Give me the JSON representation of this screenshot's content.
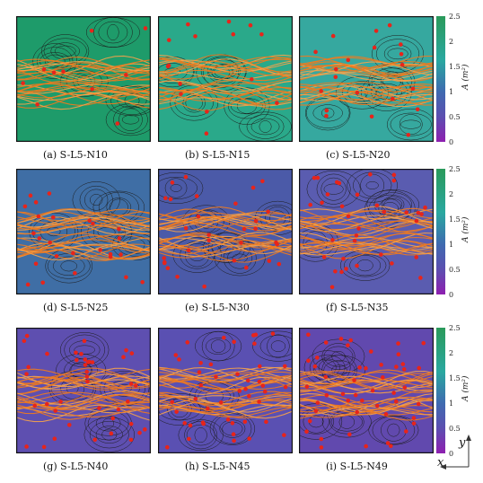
{
  "panels": [
    {
      "id": "a",
      "caption": "(a) S-L5-N10",
      "base": "#1e9b6a",
      "points": 10
    },
    {
      "id": "b",
      "caption": "(b) S-L5-N15",
      "base": "#2aa98a",
      "points": 15
    },
    {
      "id": "c",
      "caption": "(c) S-L5-N20",
      "base": "#36a89f",
      "points": 20
    },
    {
      "id": "d",
      "caption": "(d) S-L5-N25",
      "base": "#3f6ea5",
      "points": 25
    },
    {
      "id": "e",
      "caption": "(e) S-L5-N30",
      "base": "#4b5aa8",
      "points": 30
    },
    {
      "id": "f",
      "caption": "(f) S-L5-N35",
      "base": "#5a5cb0",
      "points": 35
    },
    {
      "id": "g",
      "caption": "(g) S-L5-N40",
      "base": "#5e4fb0",
      "points": 40
    },
    {
      "id": "h",
      "caption": "(h) S-L5-N45",
      "base": "#5a50b2",
      "points": 45
    },
    {
      "id": "i",
      "caption": "(i) S-L5-N49",
      "base": "#6149ae",
      "points": 49
    }
  ],
  "colorbar": {
    "label": "A (m²)",
    "ticks": [
      "2.5",
      "2",
      "1.5",
      "1",
      "0.5",
      "0"
    ],
    "colors": [
      "#2a9a5a",
      "#2aa8a0",
      "#3f6bb0",
      "#5c4fb0",
      "#8e1fb0"
    ]
  },
  "axes": {
    "x_label": "x",
    "y_label": "y"
  },
  "colors": {
    "stream": "#f07a1e",
    "stream_light": "#f6a24a",
    "points": "#e8241a",
    "contour": "#1c1c1c"
  }
}
